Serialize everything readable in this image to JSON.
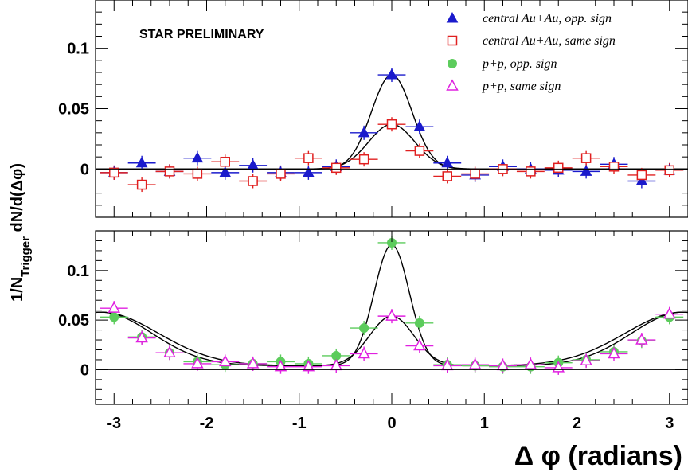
{
  "chart_data": [
    {
      "type": "scatter",
      "panel": "top",
      "annotation": "STAR PRELIMINARY",
      "xlim": [
        -3.2,
        3.2
      ],
      "ylim": [
        -0.04,
        0.14
      ],
      "yticks": [
        {
          "v": 0,
          "label": "0"
        },
        {
          "v": 0.05,
          "label": "0.05"
        },
        {
          "v": 0.1,
          "label": "0.1"
        }
      ],
      "grid": false,
      "legend_position": "top-right",
      "series": [
        {
          "name": "central Au+Au, opp. sign",
          "marker": "triangle-filled",
          "color": "#1a1acc",
          "x": [
            -3.0,
            -2.7,
            -2.4,
            -2.1,
            -1.8,
            -1.5,
            -1.2,
            -0.9,
            -0.6,
            -0.3,
            0.0,
            0.3,
            0.6,
            0.9,
            1.2,
            1.5,
            1.8,
            2.1,
            2.4,
            2.7,
            3.0
          ],
          "y": [
            -0.003,
            0.005,
            -0.002,
            0.009,
            -0.003,
            0.003,
            -0.003,
            -0.003,
            0.002,
            0.03,
            0.078,
            0.035,
            0.005,
            -0.005,
            0.002,
            0.0,
            -0.001,
            -0.002,
            0.004,
            -0.01,
            -0.001
          ]
        },
        {
          "name": "central Au+Au, same sign",
          "marker": "square-open",
          "color": "#e02020",
          "x": [
            -3.0,
            -2.7,
            -2.4,
            -2.1,
            -1.8,
            -1.5,
            -1.2,
            -0.9,
            -0.6,
            -0.3,
            0.0,
            0.3,
            0.6,
            0.9,
            1.2,
            1.5,
            1.8,
            2.1,
            2.4,
            2.7,
            3.0
          ],
          "y": [
            -0.003,
            -0.013,
            -0.002,
            -0.004,
            0.006,
            -0.01,
            -0.004,
            0.009,
            0.001,
            0.008,
            0.037,
            0.015,
            -0.006,
            -0.004,
            0.0,
            -0.002,
            0.001,
            0.009,
            0.002,
            -0.005,
            -0.001
          ]
        }
      ],
      "fits": [
        {
          "baseline": 0.0,
          "amplitude": 0.078,
          "sigma": 0.22
        },
        {
          "baseline": 0.0,
          "amplitude": 0.037,
          "sigma": 0.25
        }
      ]
    },
    {
      "type": "scatter",
      "panel": "bottom",
      "xlabel": "Δ φ (radians)",
      "xlim": [
        -3.2,
        3.2
      ],
      "ylim": [
        -0.035,
        0.14
      ],
      "xticks": [
        {
          "v": -3,
          "label": "-3"
        },
        {
          "v": -2,
          "label": "-2"
        },
        {
          "v": -1,
          "label": "-1"
        },
        {
          "v": 0,
          "label": "0"
        },
        {
          "v": 1,
          "label": "1"
        },
        {
          "v": 2,
          "label": "2"
        },
        {
          "v": 3,
          "label": "3"
        }
      ],
      "yticks": [
        {
          "v": 0,
          "label": "0"
        },
        {
          "v": 0.05,
          "label": "0.05"
        },
        {
          "v": 0.1,
          "label": "0.1"
        }
      ],
      "grid": false,
      "series": [
        {
          "name": "p+p, opp. sign",
          "marker": "circle-filled",
          "color": "#5ccc5c",
          "x": [
            -3.0,
            -2.7,
            -2.4,
            -2.1,
            -1.8,
            -1.5,
            -1.2,
            -0.9,
            -0.6,
            -0.3,
            0.0,
            0.3,
            0.6,
            0.9,
            1.2,
            1.5,
            1.8,
            2.1,
            2.4,
            2.7,
            3.0
          ],
          "y": [
            0.053,
            0.033,
            0.017,
            0.008,
            0.005,
            0.006,
            0.008,
            0.006,
            0.014,
            0.042,
            0.128,
            0.047,
            0.005,
            0.004,
            0.003,
            0.003,
            0.007,
            0.01,
            0.018,
            0.029,
            0.053
          ]
        },
        {
          "name": "p+p, same sign",
          "marker": "triangle-open",
          "color": "#e020e0",
          "x": [
            -3.0,
            -2.7,
            -2.4,
            -2.1,
            -1.8,
            -1.5,
            -1.2,
            -0.9,
            -0.6,
            -0.3,
            0.0,
            0.3,
            0.6,
            0.9,
            1.2,
            1.5,
            1.8,
            2.1,
            2.4,
            2.7,
            3.0
          ],
          "y": [
            0.062,
            0.032,
            0.017,
            0.006,
            0.008,
            0.006,
            0.003,
            0.003,
            0.004,
            0.016,
            0.054,
            0.024,
            0.004,
            0.005,
            0.004,
            0.005,
            0.002,
            0.009,
            0.016,
            0.03,
            0.056
          ]
        }
      ],
      "fits": [
        {
          "baseline": 0.004,
          "amplitude": 0.122,
          "sigma": 0.19,
          "away_amplitude": 0.054,
          "away_sigma": 0.55
        },
        {
          "baseline": 0.004,
          "amplitude": 0.05,
          "sigma": 0.24,
          "away_amplitude": 0.054,
          "away_sigma": 0.62
        }
      ]
    }
  ],
  "shared_ylabel": "1/N",
  "shared_ylabel_sub": "Trigger",
  "shared_ylabel_tail": " dN/d(Δφ)",
  "colors": {
    "axis": "#000000",
    "fit": "#000000"
  }
}
